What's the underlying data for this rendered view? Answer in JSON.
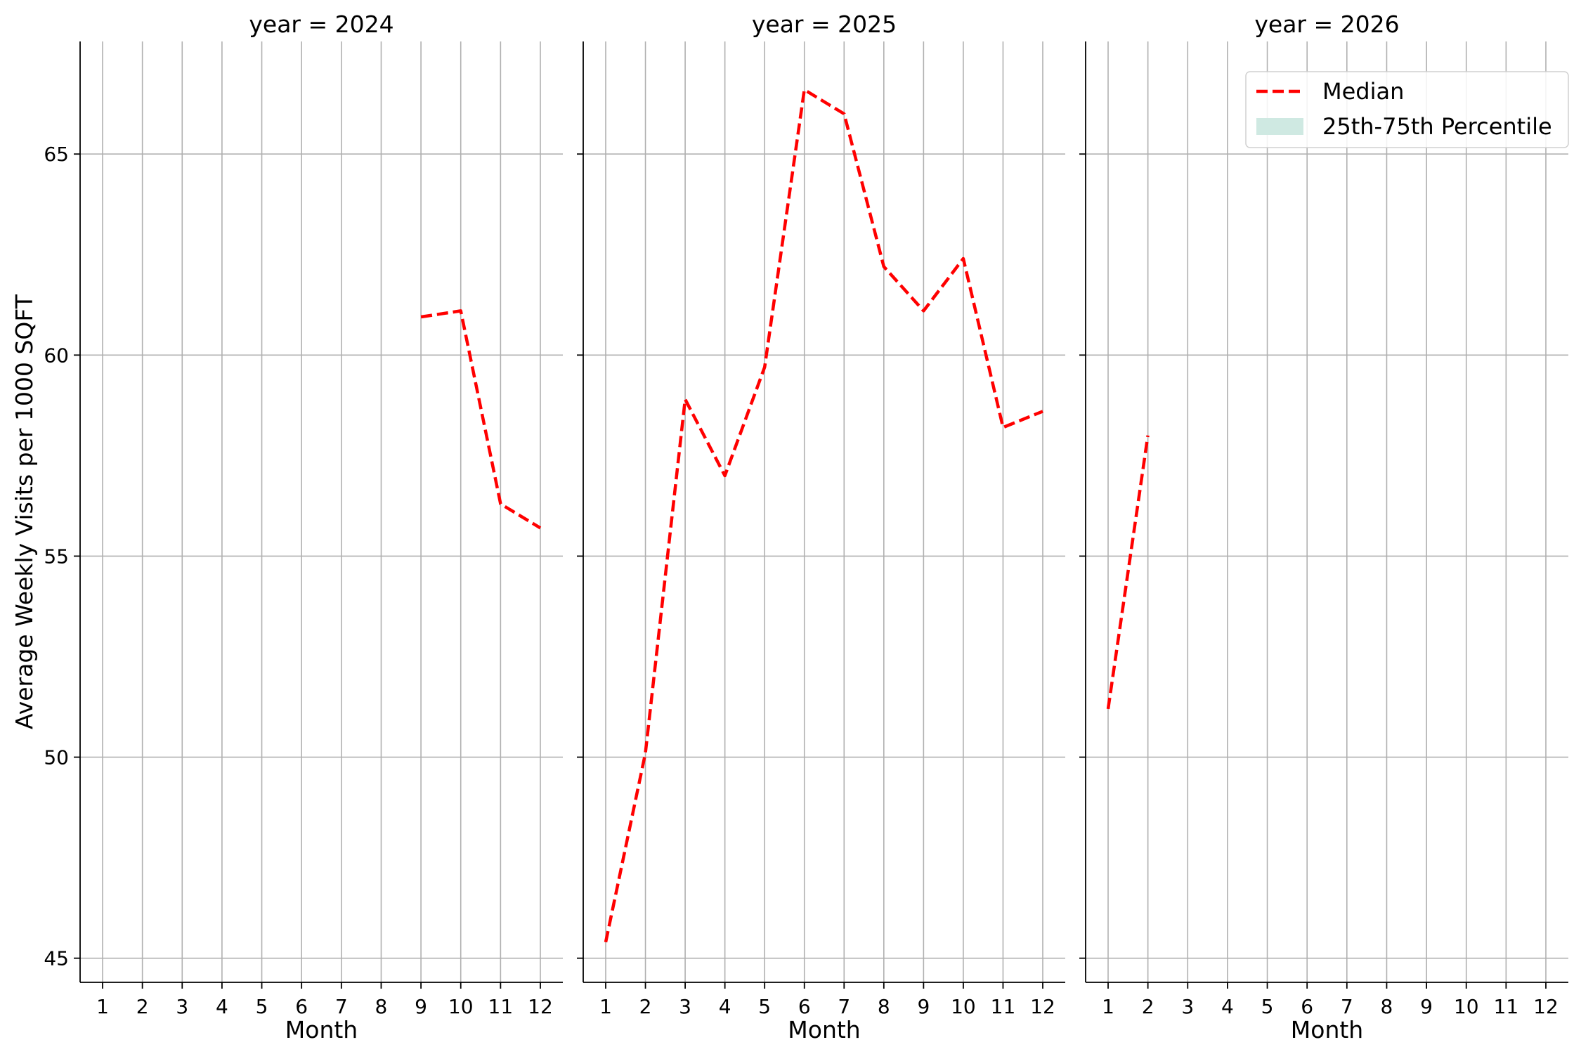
{
  "chart_data": {
    "type": "line",
    "ylabel": "Average Weekly Visits per 1000 SQFT",
    "ylim": [
      44.4,
      67.8
    ],
    "yticks": [
      45,
      50,
      55,
      60,
      65
    ],
    "xticks": [
      1,
      2,
      3,
      4,
      5,
      6,
      7,
      8,
      9,
      10,
      11,
      12
    ],
    "grid": true,
    "legend": {
      "placement": "upper-right of last panel",
      "entries": [
        {
          "label": "Median",
          "color": "#ff0000",
          "style": "dashed"
        },
        {
          "label": "25th-75th Percentile",
          "color": "#cfe9e2",
          "style": "band"
        }
      ]
    },
    "panels": [
      {
        "title": "year = 2024",
        "xlabel": "Month",
        "series": [
          {
            "name": "Median",
            "x": [
              9,
              10,
              11,
              12
            ],
            "y": [
              60.95,
              61.1,
              56.3,
              55.7
            ]
          }
        ]
      },
      {
        "title": "year = 2025",
        "xlabel": "Month",
        "series": [
          {
            "name": "Median",
            "x": [
              1,
              2,
              3,
              4,
              5,
              6,
              7,
              8,
              9,
              10,
              11,
              12
            ],
            "y": [
              45.4,
              50.1,
              58.9,
              57.0,
              59.7,
              66.6,
              66.0,
              62.2,
              61.1,
              62.4,
              58.2,
              58.6
            ]
          }
        ]
      },
      {
        "title": "year = 2026",
        "xlabel": "Month",
        "series": [
          {
            "name": "Median",
            "x": [
              1,
              2
            ],
            "y": [
              51.2,
              58.0
            ]
          }
        ]
      }
    ],
    "colors": {
      "median": "#ff0000",
      "band": "#cfe9e2",
      "grid": "#b0b0b0",
      "axis": "#000000"
    }
  }
}
